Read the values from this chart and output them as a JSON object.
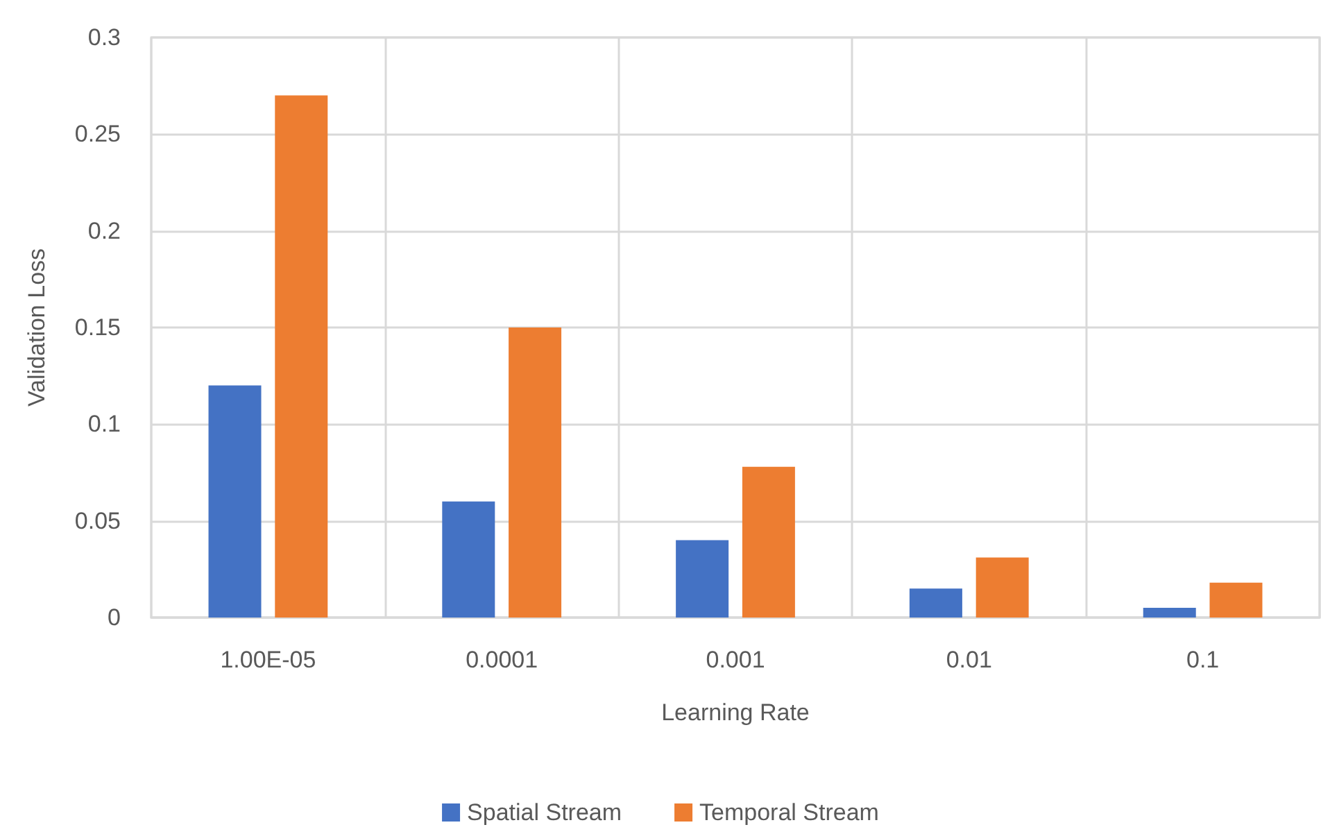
{
  "chart_data": {
    "type": "bar",
    "xlabel": "Learning Rate",
    "ylabel": "Validation Loss",
    "categories": [
      "1.00E-05",
      "0.0001",
      "0.001",
      "0.01",
      "0.1"
    ],
    "series": [
      {
        "name": "Spatial Stream",
        "color": "#4472c4",
        "values": [
          0.12,
          0.06,
          0.04,
          0.015,
          0.005
        ]
      },
      {
        "name": "Temporal Stream",
        "color": "#ed7d31",
        "values": [
          0.27,
          0.15,
          0.078,
          0.031,
          0.018
        ]
      }
    ],
    "ylim": [
      0,
      0.3
    ],
    "yticks": [
      0,
      0.05,
      0.1,
      0.15,
      0.2,
      0.25,
      0.3
    ],
    "grid": true,
    "legend": "bottom"
  }
}
